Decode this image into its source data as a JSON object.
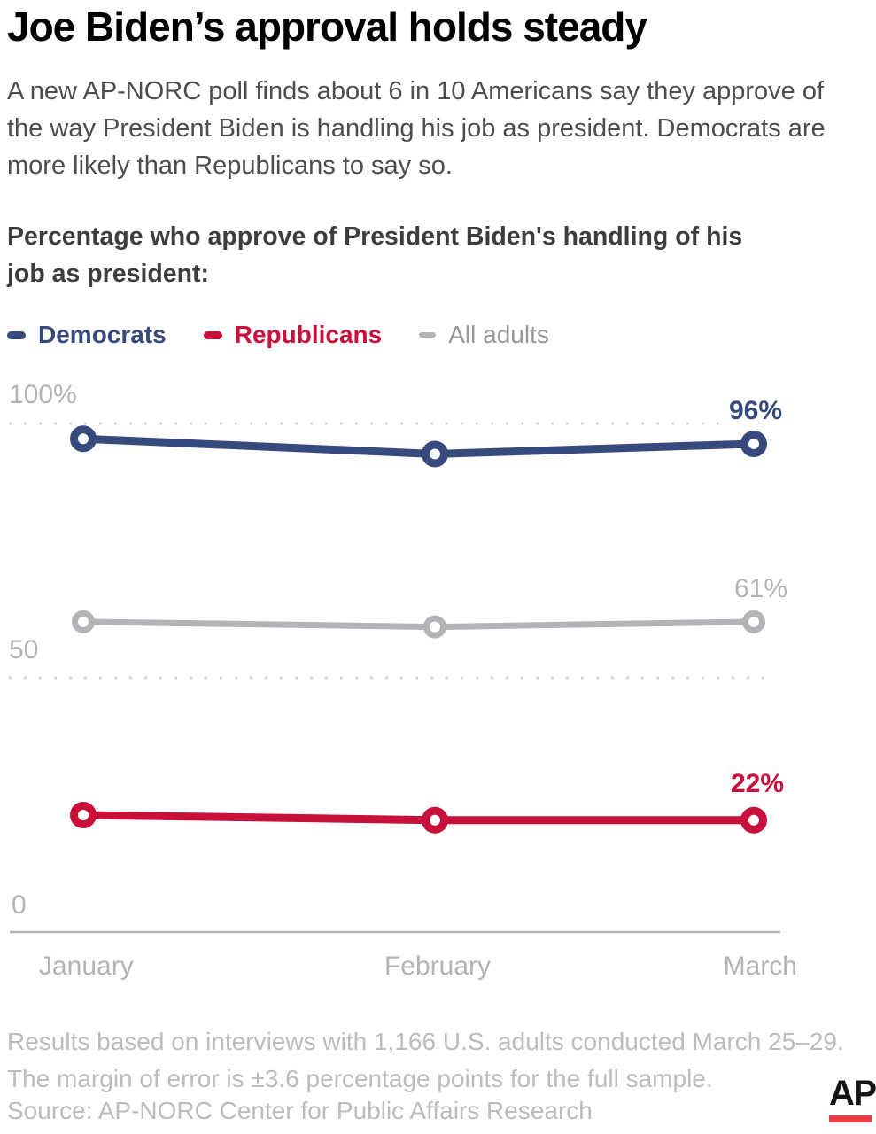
{
  "title": "Joe Biden’s approval holds steady",
  "subtitle": "A new AP-NORC poll finds about 6 in 10 Americans say they approve of the way President Biden is handling his job as president. Democrats are more likely than Republicans to say so.",
  "chart_heading": "Percentage who approve of President Biden's handling of his job as president:",
  "legend": [
    {
      "label": "Democrats",
      "color": "#374a7d",
      "text_color": "#374a7d"
    },
    {
      "label": "Republicans",
      "color": "#c8103a",
      "text_color": "#c8103a"
    },
    {
      "label": "All adults",
      "color": "#b4b4b8",
      "text_color": "#98989e"
    }
  ],
  "chart_data": {
    "type": "line",
    "title": "Percentage who approve of President Biden's handling of his job as president",
    "categories": [
      "January",
      "February",
      "March"
    ],
    "series": [
      {
        "name": "Democrats",
        "color": "#374a7d",
        "values": [
          97,
          94,
          96
        ],
        "end_label": "96%"
      },
      {
        "name": "Republicans",
        "color": "#c8103a",
        "values": [
          23,
          22,
          22
        ],
        "end_label": "22%"
      },
      {
        "name": "All adults",
        "color": "#b4b4b8",
        "values": [
          61,
          60,
          61
        ],
        "end_label": "61%"
      }
    ],
    "xlabel": "",
    "ylabel": "",
    "ylim": [
      0,
      100
    ],
    "yticks": [
      {
        "value": 100,
        "label": "100%",
        "dotted": true
      },
      {
        "value": 50,
        "label": "50",
        "dotted": true
      },
      {
        "value": 0,
        "label": "0",
        "axis": true
      }
    ],
    "grid": "horizontal dotted at 100 and 50",
    "legend_position": "top"
  },
  "footnote_line1": "Results based on interviews with 1,166 U.S. adults conducted March 25–29.",
  "footnote_line2": "The margin of error is ±3.6 percentage points for the full sample.",
  "source": "Source: AP-NORC Center for Public Affairs Research",
  "logo": {
    "text": "AP",
    "bar_color": "#ee3b43"
  }
}
